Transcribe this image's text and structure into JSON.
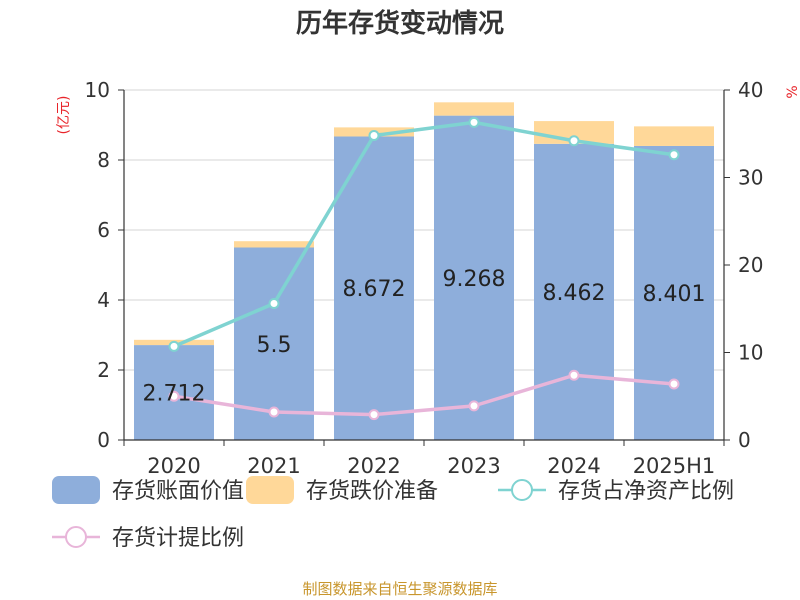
{
  "colors": {
    "book_value": "#8eaedb",
    "impairment": "#ffd899",
    "ratio_net_assets": "#7fd3d1",
    "provision_ratio": "#e8b5d9",
    "unit_text": "#e8242a",
    "source_text": "#c8962d"
  },
  "chart_data": {
    "type": "bar",
    "title": "历年存货变动情况",
    "unit_left": "(亿元)",
    "unit_right": "%",
    "categories": [
      "2020",
      "2021",
      "2022",
      "2023",
      "2024",
      "2025H1"
    ],
    "stacked": true,
    "left_axis": {
      "min": 0,
      "max": 10,
      "ticks": [
        0,
        2,
        4,
        6,
        8,
        10
      ]
    },
    "right_axis": {
      "min": 0,
      "max": 40,
      "ticks": [
        0,
        10,
        20,
        30,
        40
      ]
    },
    "grid": true,
    "legend_position": "bottom",
    "series": [
      {
        "name": "存货账面价值",
        "type": "bar",
        "axis": "left",
        "values": [
          2.712,
          5.5,
          8.672,
          9.268,
          8.462,
          8.401
        ],
        "labels": [
          "2.712",
          "5.5",
          "8.672",
          "9.268",
          "8.462",
          "8.401"
        ]
      },
      {
        "name": "存货跌价准备",
        "type": "bar",
        "axis": "left",
        "values": [
          0.15,
          0.18,
          0.26,
          0.38,
          0.65,
          0.56
        ]
      },
      {
        "name": "存货占净资产比例",
        "type": "line",
        "axis": "right",
        "values": [
          10.7,
          15.6,
          34.8,
          36.3,
          34.2,
          32.6
        ]
      },
      {
        "name": "存货计提比例",
        "type": "line",
        "axis": "right",
        "values": [
          5.0,
          3.2,
          2.9,
          3.9,
          7.4,
          6.4
        ]
      }
    ]
  },
  "source": "制图数据来自恒生聚源数据库"
}
